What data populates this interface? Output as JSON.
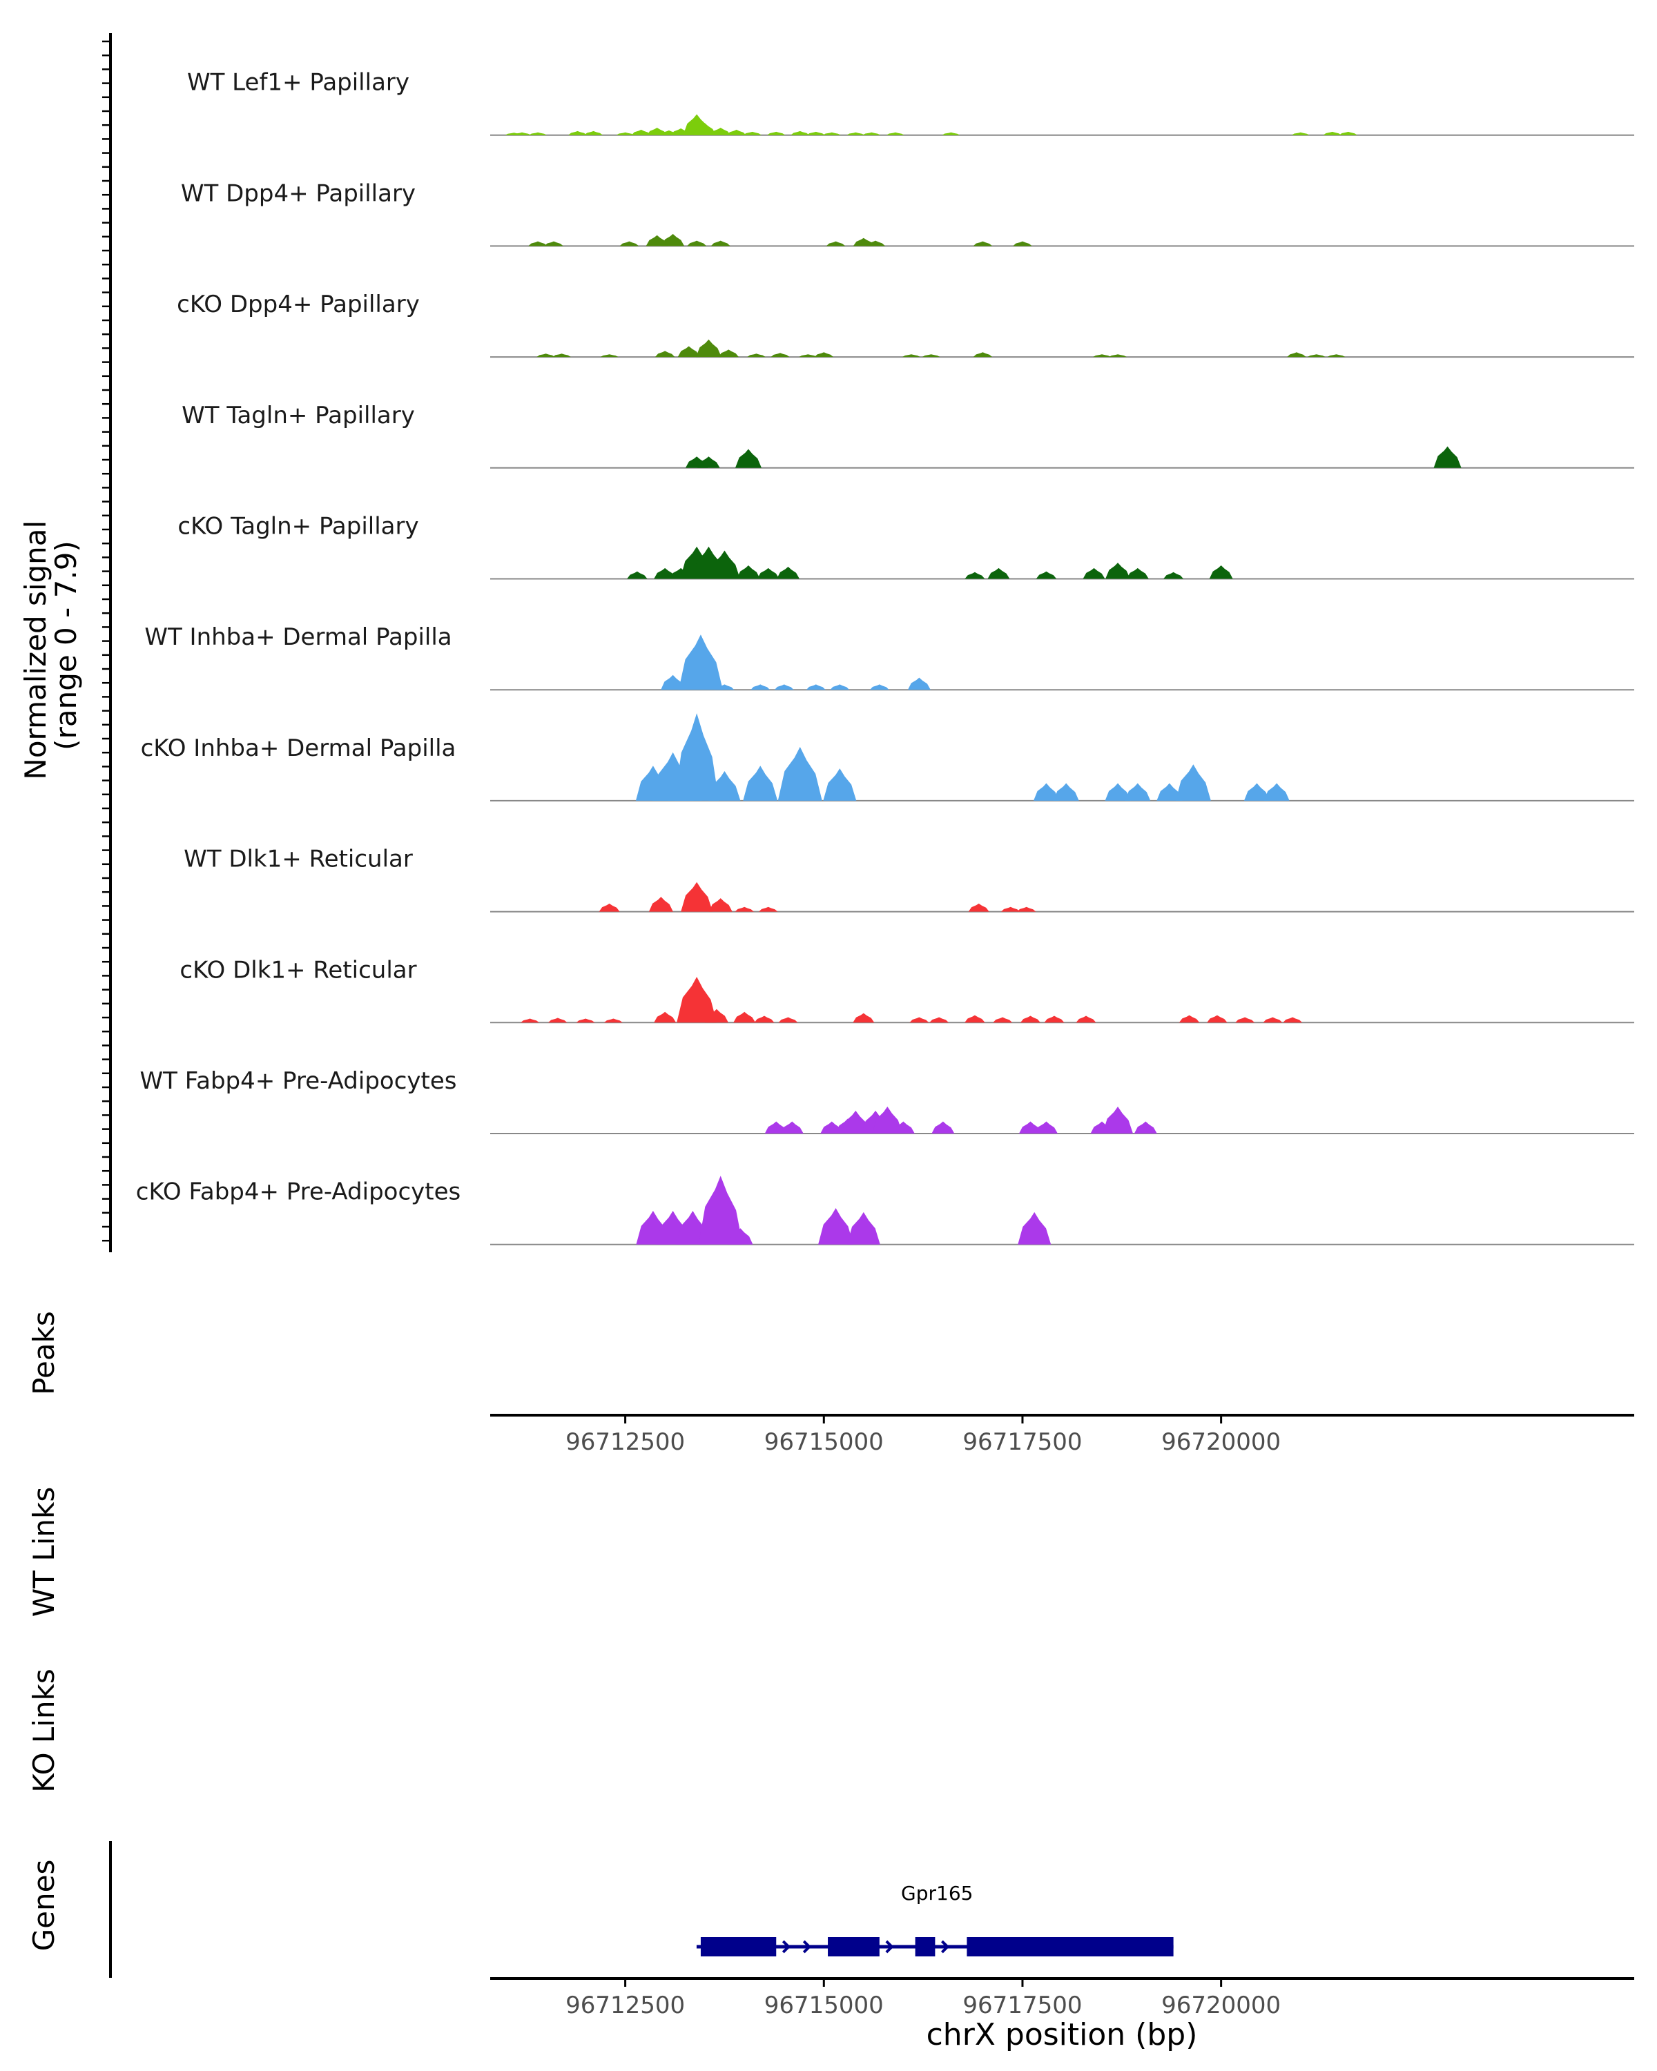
{
  "chart_data": {
    "type": "area",
    "title": "",
    "ylabel": "Normalized signal\n(range 0 - 7.9)",
    "ylim": [
      0,
      7.9
    ],
    "xlabel": "chrX position (bp)",
    "xlim": [
      96710800,
      96725200
    ],
    "xticks": [
      96712500,
      96715000,
      96717500,
      96720000
    ],
    "xtick_labels": [
      "96712500",
      "96715000",
      "96717500",
      "96720000"
    ],
    "panel_labels": {
      "peaks": "Peaks",
      "wt_links": "WT Links",
      "ko_links": "KO Links",
      "genes": "Genes"
    },
    "tracks": [
      {
        "name": "WT Lef1+ Papillary",
        "color": "#7ccd0c",
        "peaks": [
          [
            96711100,
            0.18
          ],
          [
            96711200,
            0.2
          ],
          [
            96711400,
            0.2
          ],
          [
            96711900,
            0.3
          ],
          [
            96712100,
            0.3
          ],
          [
            96712500,
            0.2
          ],
          [
            96712700,
            0.4
          ],
          [
            96712900,
            0.55
          ],
          [
            96713050,
            0.35
          ],
          [
            96713200,
            0.5
          ],
          [
            96713400,
            1.55
          ],
          [
            96713500,
            0.9
          ],
          [
            96713700,
            0.55
          ],
          [
            96713900,
            0.4
          ],
          [
            96714100,
            0.25
          ],
          [
            96714400,
            0.25
          ],
          [
            96714700,
            0.3
          ],
          [
            96714900,
            0.25
          ],
          [
            96715100,
            0.2
          ],
          [
            96715400,
            0.2
          ],
          [
            96715600,
            0.2
          ],
          [
            96715900,
            0.2
          ],
          [
            96716600,
            0.2
          ],
          [
            96721000,
            0.2
          ],
          [
            96721400,
            0.25
          ],
          [
            96721600,
            0.25
          ]
        ]
      },
      {
        "name": "WT Dpp4+ Papillary",
        "color": "#4e8a0c",
        "peaks": [
          [
            96711400,
            0.35
          ],
          [
            96711600,
            0.35
          ],
          [
            96712550,
            0.35
          ],
          [
            96712900,
            0.8
          ],
          [
            96713100,
            0.9
          ],
          [
            96713400,
            0.4
          ],
          [
            96713700,
            0.4
          ],
          [
            96715150,
            0.35
          ],
          [
            96715500,
            0.6
          ],
          [
            96715650,
            0.4
          ],
          [
            96717000,
            0.35
          ],
          [
            96717500,
            0.35
          ]
        ]
      },
      {
        "name": "cKO Dpp4+ Papillary",
        "color": "#4e8a0c",
        "peaks": [
          [
            96711500,
            0.25
          ],
          [
            96711700,
            0.25
          ],
          [
            96712300,
            0.2
          ],
          [
            96713000,
            0.45
          ],
          [
            96713300,
            0.8
          ],
          [
            96713550,
            1.3
          ],
          [
            96713800,
            0.55
          ],
          [
            96714150,
            0.25
          ],
          [
            96714450,
            0.3
          ],
          [
            96714800,
            0.2
          ],
          [
            96715000,
            0.35
          ],
          [
            96716100,
            0.2
          ],
          [
            96716350,
            0.2
          ],
          [
            96717000,
            0.35
          ],
          [
            96718500,
            0.2
          ],
          [
            96718700,
            0.2
          ],
          [
            96720950,
            0.35
          ],
          [
            96721200,
            0.2
          ],
          [
            96721450,
            0.2
          ]
        ]
      },
      {
        "name": "WT Tagln+ Papillary",
        "color": "#0c640c",
        "peaks": [
          [
            96713400,
            0.85
          ],
          [
            96713550,
            0.85
          ],
          [
            96714050,
            1.4
          ],
          [
            96722850,
            1.6
          ]
        ]
      },
      {
        "name": "cKO Tagln+ Papillary",
        "color": "#0c640c",
        "peaks": [
          [
            96712650,
            0.55
          ],
          [
            96713000,
            0.8
          ],
          [
            96713200,
            0.8
          ],
          [
            96713400,
            2.4
          ],
          [
            96713550,
            2.4
          ],
          [
            96713750,
            2.1
          ],
          [
            96714050,
            1.0
          ],
          [
            96714300,
            0.8
          ],
          [
            96714550,
            0.9
          ],
          [
            96716900,
            0.5
          ],
          [
            96717200,
            0.8
          ],
          [
            96717800,
            0.55
          ],
          [
            96718400,
            0.8
          ],
          [
            96718700,
            1.2
          ],
          [
            96718950,
            0.8
          ],
          [
            96719400,
            0.5
          ],
          [
            96720000,
            1.0
          ]
        ]
      },
      {
        "name": "WT Inhba+ Dermal Papilla",
        "color": "#56a6ea",
        "peaks": [
          [
            96713100,
            1.1
          ],
          [
            96713450,
            4.1
          ],
          [
            96713750,
            0.4
          ],
          [
            96714200,
            0.4
          ],
          [
            96714500,
            0.4
          ],
          [
            96714900,
            0.4
          ],
          [
            96715200,
            0.4
          ],
          [
            96715700,
            0.4
          ],
          [
            96716200,
            0.9
          ]
        ]
      },
      {
        "name": "cKO Inhba+ Dermal Papilla",
        "color": "#56a6ea",
        "peaks": [
          [
            96712850,
            2.6
          ],
          [
            96713100,
            3.6
          ],
          [
            96713250,
            2.5
          ],
          [
            96713400,
            6.5
          ],
          [
            96713750,
            2.2
          ],
          [
            96714200,
            2.6
          ],
          [
            96714700,
            4.0
          ],
          [
            96715200,
            2.4
          ],
          [
            96717800,
            1.3
          ],
          [
            96718050,
            1.3
          ],
          [
            96718700,
            1.3
          ],
          [
            96718950,
            1.3
          ],
          [
            96719350,
            1.3
          ],
          [
            96719650,
            2.7
          ],
          [
            96720450,
            1.3
          ],
          [
            96720700,
            1.3
          ]
        ]
      },
      {
        "name": "WT Dlk1+ Reticular",
        "color": "#f53336",
        "peaks": [
          [
            96712300,
            0.6
          ],
          [
            96712950,
            1.1
          ],
          [
            96713400,
            2.2
          ],
          [
            96713700,
            1.0
          ],
          [
            96714000,
            0.35
          ],
          [
            96714300,
            0.35
          ],
          [
            96716950,
            0.6
          ],
          [
            96717350,
            0.35
          ],
          [
            96717550,
            0.35
          ]
        ]
      },
      {
        "name": "cKO Dlk1+ Reticular",
        "color": "#f53336",
        "peaks": [
          [
            96711300,
            0.3
          ],
          [
            96711650,
            0.35
          ],
          [
            96712000,
            0.3
          ],
          [
            96712350,
            0.3
          ],
          [
            96713000,
            0.8
          ],
          [
            96713400,
            3.4
          ],
          [
            96713650,
            1.0
          ],
          [
            96714000,
            0.8
          ],
          [
            96714250,
            0.5
          ],
          [
            96714550,
            0.4
          ],
          [
            96715500,
            0.7
          ],
          [
            96716200,
            0.4
          ],
          [
            96716450,
            0.4
          ],
          [
            96716900,
            0.55
          ],
          [
            96717250,
            0.4
          ],
          [
            96717600,
            0.5
          ],
          [
            96717900,
            0.5
          ],
          [
            96718300,
            0.5
          ],
          [
            96719600,
            0.55
          ],
          [
            96719950,
            0.55
          ],
          [
            96720300,
            0.4
          ],
          [
            96720650,
            0.4
          ],
          [
            96720900,
            0.4
          ]
        ]
      },
      {
        "name": "WT Fabp4+ Pre-Adipocytes",
        "color": "#ab39ea",
        "peaks": [
          [
            96714400,
            0.9
          ],
          [
            96714600,
            0.9
          ],
          [
            96715100,
            0.9
          ],
          [
            96715300,
            1.1
          ],
          [
            96715400,
            1.7
          ],
          [
            96715650,
            1.7
          ],
          [
            96715800,
            2.0
          ],
          [
            96716000,
            0.9
          ],
          [
            96716500,
            0.9
          ],
          [
            96717600,
            0.9
          ],
          [
            96717800,
            0.9
          ],
          [
            96718500,
            0.9
          ],
          [
            96718700,
            2.0
          ],
          [
            96719050,
            0.9
          ]
        ]
      },
      {
        "name": "cKO Fabp4+ Pre-Adipocytes",
        "color": "#ab39ea",
        "peaks": [
          [
            96712850,
            2.5
          ],
          [
            96713100,
            2.5
          ],
          [
            96713350,
            2.5
          ],
          [
            96713700,
            5.1
          ],
          [
            96713950,
            1.2
          ],
          [
            96715150,
            2.7
          ],
          [
            96715500,
            2.4
          ],
          [
            96717650,
            2.4
          ]
        ]
      }
    ],
    "genes": [
      {
        "name": "Gpr165",
        "strand": "+",
        "start": 96713450,
        "end": 96719400,
        "exons": [
          [
            96713450,
            96714400
          ],
          [
            96715050,
            96715700
          ],
          [
            96716150,
            96716400
          ],
          [
            96716800,
            96719400
          ]
        ]
      }
    ]
  }
}
